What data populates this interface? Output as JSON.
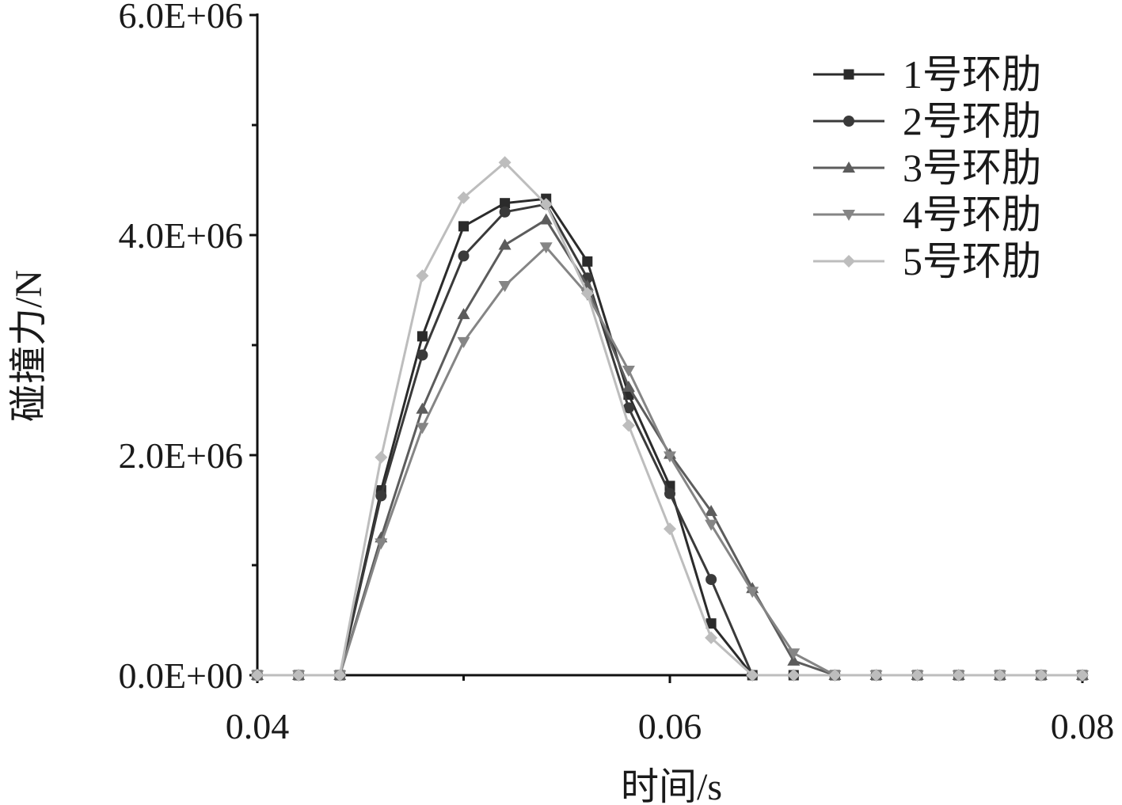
{
  "chart_data": {
    "type": "line",
    "title": "",
    "xlabel": "时间/s",
    "ylabel": "碰撞力/N",
    "xlim": [
      0.04,
      0.08
    ],
    "ylim": [
      0,
      6000000
    ],
    "x_ticks": [
      0.04,
      0.06,
      0.08
    ],
    "x_tick_labels": [
      "0.04",
      "0.06",
      "0.08"
    ],
    "y_ticks": [
      0,
      2000000,
      4000000,
      6000000
    ],
    "y_tick_labels": [
      "0.0E+00",
      "2.0E+06",
      "4.0E+06",
      "6.0E+06"
    ],
    "grid": false,
    "legend_position": "top-right",
    "x": [
      0.04,
      0.042,
      0.044,
      0.046,
      0.048,
      0.05,
      0.052,
      0.054,
      0.056,
      0.058,
      0.06,
      0.062,
      0.064,
      0.066,
      0.068,
      0.07,
      0.072,
      0.074,
      0.076,
      0.078,
      0.08
    ],
    "series": [
      {
        "name": "1号环肋",
        "marker": "square",
        "color": "#2b2b2b",
        "values": [
          0,
          0,
          0,
          1680000,
          3080000,
          4080000,
          4290000,
          4330000,
          3760000,
          2550000,
          1720000,
          470000,
          0,
          0,
          0,
          0,
          0,
          0,
          0,
          0,
          0
        ]
      },
      {
        "name": "2号环肋",
        "marker": "circle",
        "color": "#3a3a3a",
        "values": [
          0,
          0,
          0,
          1630000,
          2910000,
          3810000,
          4210000,
          4280000,
          3610000,
          2430000,
          1650000,
          870000,
          0,
          0,
          0,
          0,
          0,
          0,
          0,
          0,
          0
        ]
      },
      {
        "name": "3号环肋",
        "marker": "triangle-up",
        "color": "#5c5c5c",
        "values": [
          0,
          0,
          0,
          1250000,
          2420000,
          3280000,
          3910000,
          4140000,
          3540000,
          2620000,
          2010000,
          1490000,
          790000,
          130000,
          0,
          0,
          0,
          0,
          0,
          0,
          0
        ]
      },
      {
        "name": "4号环肋",
        "marker": "triangle-down",
        "color": "#858585",
        "values": [
          0,
          0,
          0,
          1200000,
          2250000,
          3030000,
          3540000,
          3890000,
          3460000,
          2770000,
          1990000,
          1370000,
          760000,
          200000,
          0,
          0,
          0,
          0,
          0,
          0,
          0
        ]
      },
      {
        "name": "5号环肋",
        "marker": "diamond",
        "color": "#bdbdbd",
        "values": [
          0,
          0,
          0,
          1980000,
          3630000,
          4340000,
          4660000,
          4280000,
          3470000,
          2270000,
          1330000,
          340000,
          0,
          0,
          0,
          0,
          0,
          0,
          0,
          0,
          0
        ]
      }
    ]
  }
}
